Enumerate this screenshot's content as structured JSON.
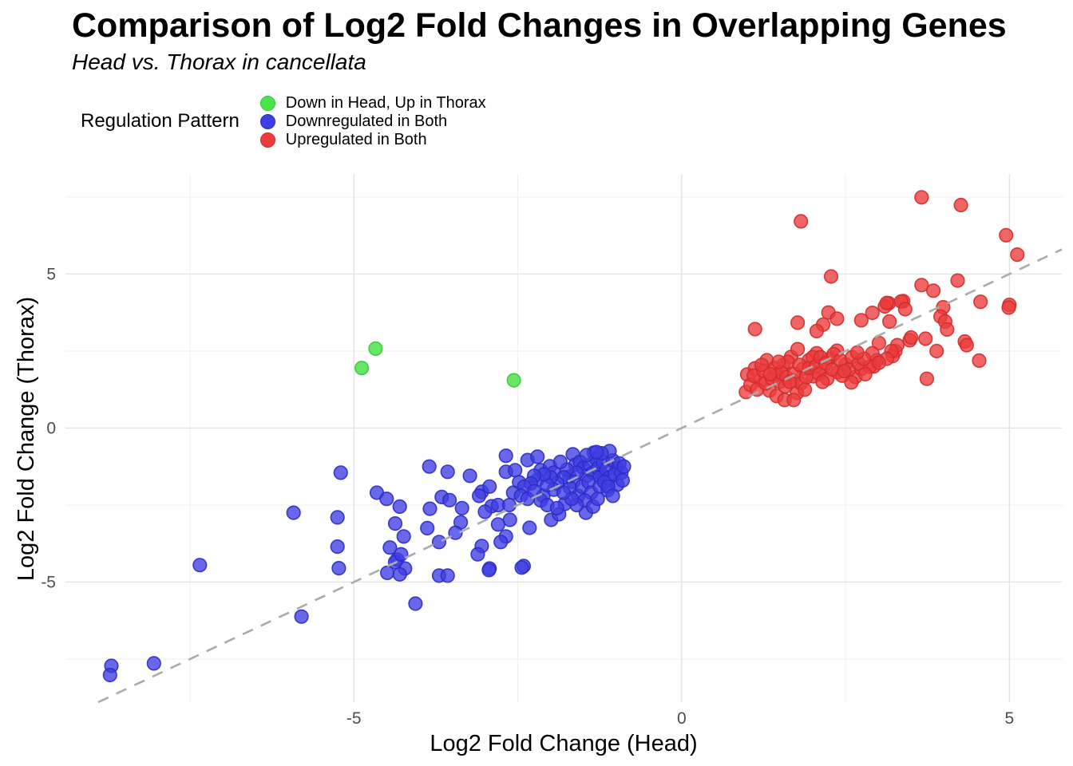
{
  "title": "Comparison of Log2 Fold Changes in Overlapping Genes",
  "subtitle": "Head vs. Thorax in cancellata",
  "legend_title": "Regulation Pattern",
  "chart_data": {
    "type": "scatter",
    "title": "Comparison of Log2 Fold Changes in Overlapping Genes",
    "subtitle": "Head vs. Thorax in cancellata",
    "xlabel": "Log2 Fold Change (Head)",
    "ylabel": "Log2 Fold Change (Thorax)",
    "xlim": [
      -9.4,
      5.8
    ],
    "ylim": [
      -8.9,
      8.25
    ],
    "x_ticks": [
      -5,
      0,
      5
    ],
    "y_ticks": [
      -5,
      0,
      5
    ],
    "minor_x_gridlines": [
      -7.5,
      -2.5,
      2.5
    ],
    "minor_y_gridlines": [
      -7.5,
      -2.5,
      2.5,
      7.5
    ],
    "grid": true,
    "legend_position": "top",
    "background": "#FFFFFF",
    "identity_line": {
      "equation": "y = x",
      "style": "dashed",
      "color": "#ABABAB"
    },
    "series": [
      {
        "name": "Down in Head, Up in Thorax",
        "color": "#4BE34B",
        "stroke": "#38C838",
        "opacity": 0.85,
        "points": [
          [
            -4.88,
            1.95
          ],
          [
            -4.67,
            2.58
          ],
          [
            -2.56,
            1.55
          ]
        ]
      },
      {
        "name": "Downregulated in Both",
        "color": "#3D3DE3",
        "stroke": "#2B2BC4",
        "opacity": 0.78,
        "points": [
          [
            -8.7,
            -7.72
          ],
          [
            -8.72,
            -8.02
          ],
          [
            -8.05,
            -7.64
          ],
          [
            -7.35,
            -4.45
          ],
          [
            -5.92,
            -2.75
          ],
          [
            -5.8,
            -6.12
          ],
          [
            -5.2,
            -1.45
          ],
          [
            -5.25,
            -2.9
          ],
          [
            -5.25,
            -3.85
          ],
          [
            -5.23,
            -4.55
          ],
          [
            -4.06,
            -5.7
          ],
          [
            -4.65,
            -2.1
          ],
          [
            -4.5,
            -2.3
          ],
          [
            -4.37,
            -3.1
          ],
          [
            -4.3,
            -2.55
          ],
          [
            -4.45,
            -3.88
          ],
          [
            -4.24,
            -3.52
          ],
          [
            -4.34,
            -4.27
          ],
          [
            -4.22,
            -4.56
          ],
          [
            -4.49,
            -4.7
          ],
          [
            -4.3,
            -4.75
          ],
          [
            -4.37,
            -4.35
          ],
          [
            -4.28,
            -4.1
          ],
          [
            -3.85,
            -1.25
          ],
          [
            -3.84,
            -2.62
          ],
          [
            -3.88,
            -3.25
          ],
          [
            -3.66,
            -2.24
          ],
          [
            -3.7,
            -3.7
          ],
          [
            -3.57,
            -1.42
          ],
          [
            -3.54,
            -2.34
          ],
          [
            -3.35,
            -2.6
          ],
          [
            -3.37,
            -3.06
          ],
          [
            -3.45,
            -3.4
          ],
          [
            -3.7,
            -4.79
          ],
          [
            -3.57,
            -4.79
          ],
          [
            -3.23,
            -1.55
          ],
          [
            -3.05,
            -2.07
          ],
          [
            -3.09,
            -2.2
          ],
          [
            -2.93,
            -1.9
          ],
          [
            -2.9,
            -2.54
          ],
          [
            -3.0,
            -2.72
          ],
          [
            -2.8,
            -2.5
          ],
          [
            -2.8,
            -3.13
          ],
          [
            -3.05,
            -3.83
          ],
          [
            -3.11,
            -4.1
          ],
          [
            -2.93,
            -4.56
          ],
          [
            -2.94,
            -4.61
          ],
          [
            -2.68,
            -0.9
          ],
          [
            -2.68,
            -1.42
          ],
          [
            -2.54,
            -1.37
          ],
          [
            -2.48,
            -1.76
          ],
          [
            -2.57,
            -2.1
          ],
          [
            -2.63,
            -2.5
          ],
          [
            -2.62,
            -2.98
          ],
          [
            -2.68,
            -3.52
          ],
          [
            -2.76,
            -3.7
          ],
          [
            -2.41,
            -4.48
          ],
          [
            -2.44,
            -4.53
          ],
          [
            -2.32,
            -3.24
          ],
          [
            -2.35,
            -1.04
          ],
          [
            -2.2,
            -0.93
          ],
          [
            -2.15,
            -1.37
          ],
          [
            -2.2,
            -1.68
          ],
          [
            -2.01,
            -1.24
          ],
          [
            -1.95,
            -1.45
          ],
          [
            -2.11,
            -2.2
          ],
          [
            -1.99,
            -2.98
          ],
          [
            -1.87,
            -2.8
          ],
          [
            -1.78,
            -2.46
          ],
          [
            -1.66,
            -0.85
          ],
          [
            -1.62,
            -1.19
          ],
          [
            -1.71,
            -1.58
          ],
          [
            -1.46,
            -2.75
          ],
          [
            -1.34,
            -0.8
          ],
          [
            -1.13,
            -2.02
          ],
          [
            -0.99,
            -1.3
          ],
          [
            -0.98,
            -1.84
          ],
          [
            -1.22,
            -1.5
          ],
          [
            -1.55,
            -1.1
          ],
          [
            -1.5,
            -1.3
          ],
          [
            -1.45,
            -1.55
          ],
          [
            -1.4,
            -1.2
          ],
          [
            -1.35,
            -1.45
          ],
          [
            -1.3,
            -1.0
          ],
          [
            -1.28,
            -1.3
          ],
          [
            -1.25,
            -1.6
          ],
          [
            -1.2,
            -1.1
          ],
          [
            -1.15,
            -1.35
          ],
          [
            -1.1,
            -1.6
          ],
          [
            -1.05,
            -1.05
          ],
          [
            -1.02,
            -1.5
          ],
          [
            -0.95,
            -1.15
          ],
          [
            -0.92,
            -1.45
          ],
          [
            -0.9,
            -1.7
          ],
          [
            -0.88,
            -1.25
          ],
          [
            -1.6,
            -1.45
          ],
          [
            -1.65,
            -1.75
          ],
          [
            -1.7,
            -1.95
          ],
          [
            -1.75,
            -1.35
          ],
          [
            -1.8,
            -1.6
          ],
          [
            -1.85,
            -1.1
          ],
          [
            -1.9,
            -1.8
          ],
          [
            -1.95,
            -2.0
          ],
          [
            -2.0,
            -1.6
          ],
          [
            -2.05,
            -1.85
          ],
          [
            -1.58,
            -2.2
          ],
          [
            -1.52,
            -1.9
          ],
          [
            -1.42,
            -1.75
          ],
          [
            -1.38,
            -2.1
          ],
          [
            -1.25,
            -1.9
          ],
          [
            -1.18,
            -1.75
          ],
          [
            -1.12,
            -1.9
          ],
          [
            -1.48,
            -2.35
          ],
          [
            -1.6,
            -2.5
          ],
          [
            -1.68,
            -2.3
          ],
          [
            -2.1,
            -1.5
          ],
          [
            -2.25,
            -1.55
          ],
          [
            -2.3,
            -1.8
          ],
          [
            -2.4,
            -1.9
          ],
          [
            -2.45,
            -2.2
          ],
          [
            -2.35,
            -2.3
          ],
          [
            -2.25,
            -2.05
          ],
          [
            -2.15,
            -2.35
          ],
          [
            -2.05,
            -2.5
          ],
          [
            -1.9,
            -2.6
          ],
          [
            -1.8,
            -2.1
          ],
          [
            -1.35,
            -2.55
          ],
          [
            -1.28,
            -2.3
          ],
          [
            -1.05,
            -2.2
          ],
          [
            -1.1,
            -0.75
          ],
          [
            -1.22,
            -0.82
          ],
          [
            -1.45,
            -0.88
          ],
          [
            -1.3,
            -0.78
          ]
        ]
      },
      {
        "name": "Upregulated in Both",
        "color": "#EC3B3B",
        "stroke": "#D02B2B",
        "opacity": 0.78,
        "points": [
          [
            3.66,
            7.49
          ],
          [
            4.26,
            7.24
          ],
          [
            1.82,
            6.71
          ],
          [
            4.95,
            6.26
          ],
          [
            5.12,
            5.63
          ],
          [
            2.28,
            4.92
          ],
          [
            3.66,
            4.64
          ],
          [
            3.84,
            4.46
          ],
          [
            4.21,
            4.79
          ],
          [
            4.56,
            4.1
          ],
          [
            5.0,
            4.0
          ],
          [
            3.38,
            4.12
          ],
          [
            3.16,
            4.05
          ],
          [
            3.99,
            3.92
          ],
          [
            3.1,
            3.95
          ],
          [
            3.13,
            4.06
          ],
          [
            3.35,
            4.11
          ],
          [
            3.41,
            3.86
          ],
          [
            4.99,
            3.91
          ],
          [
            3.95,
            3.62
          ],
          [
            4.02,
            3.46
          ],
          [
            4.05,
            3.2
          ],
          [
            3.17,
            3.46
          ],
          [
            2.74,
            3.5
          ],
          [
            2.91,
            3.74
          ],
          [
            2.24,
            3.75
          ],
          [
            2.37,
            3.55
          ],
          [
            2.16,
            3.36
          ],
          [
            2.06,
            3.15
          ],
          [
            3.48,
            2.85
          ],
          [
            3.01,
            2.76
          ],
          [
            3.26,
            2.5
          ],
          [
            3.22,
            2.34
          ],
          [
            2.98,
            2.2
          ],
          [
            2.93,
            2.0
          ],
          [
            3.5,
            2.94
          ],
          [
            3.72,
            2.9
          ],
          [
            3.89,
            2.5
          ],
          [
            4.32,
            2.81
          ],
          [
            4.35,
            2.69
          ],
          [
            3.29,
            2.69
          ],
          [
            3.2,
            2.5
          ],
          [
            3.13,
            2.25
          ],
          [
            4.54,
            2.19
          ],
          [
            3.74,
            1.6
          ],
          [
            1.12,
            3.21
          ],
          [
            1.77,
            3.42
          ],
          [
            1.0,
            1.74
          ],
          [
            0.98,
            1.17
          ],
          [
            1.12,
            1.94
          ],
          [
            1.3,
            2.2
          ],
          [
            1.2,
            1.55
          ],
          [
            1.34,
            1.22
          ],
          [
            1.46,
            1.74
          ],
          [
            1.55,
            2.05
          ],
          [
            1.67,
            2.31
          ],
          [
            1.77,
            2.56
          ],
          [
            1.7,
            1.55
          ],
          [
            1.85,
            1.92
          ],
          [
            1.94,
            2.2
          ],
          [
            2.06,
            2.43
          ],
          [
            2.01,
            1.68
          ],
          [
            2.16,
            1.94
          ],
          [
            2.26,
            2.25
          ],
          [
            2.37,
            2.51
          ],
          [
            2.38,
            1.81
          ],
          [
            2.5,
            2.07
          ],
          [
            2.65,
            1.66
          ],
          [
            2.59,
            1.48
          ],
          [
            2.74,
            1.92
          ],
          [
            2.87,
            1.99
          ],
          [
            1.45,
            1.04
          ],
          [
            1.57,
            0.91
          ],
          [
            2.91,
            2.43
          ],
          [
            3.01,
            2.12
          ],
          [
            1.76,
            1.14
          ],
          [
            1.71,
            0.91
          ],
          [
            1.05,
            1.4
          ],
          [
            1.1,
            1.7
          ],
          [
            1.15,
            1.25
          ],
          [
            1.25,
            1.85
          ],
          [
            1.28,
            1.45
          ],
          [
            1.38,
            1.6
          ],
          [
            1.42,
            1.95
          ],
          [
            1.5,
            1.5
          ],
          [
            1.52,
            1.8
          ],
          [
            1.6,
            1.65
          ],
          [
            1.62,
            2.15
          ],
          [
            1.72,
            1.75
          ],
          [
            1.8,
            2.05
          ],
          [
            1.82,
            1.45
          ],
          [
            1.9,
            1.65
          ],
          [
            1.95,
            1.95
          ],
          [
            2.0,
            2.3
          ],
          [
            2.05,
            2.0
          ],
          [
            2.1,
            1.75
          ],
          [
            2.12,
            2.3
          ],
          [
            2.2,
            2.1
          ],
          [
            2.22,
            1.6
          ],
          [
            2.3,
            1.9
          ],
          [
            2.32,
            2.4
          ],
          [
            2.42,
            2.2
          ],
          [
            2.45,
            1.7
          ],
          [
            2.55,
            1.9
          ],
          [
            2.6,
            2.3
          ],
          [
            2.7,
            2.1
          ],
          [
            2.78,
            2.25
          ],
          [
            2.8,
            1.75
          ],
          [
            1.22,
            2.05
          ],
          [
            1.35,
            1.75
          ],
          [
            1.48,
            2.15
          ],
          [
            1.58,
            1.35
          ],
          [
            1.65,
            1.5
          ],
          [
            1.88,
            1.25
          ],
          [
            2.15,
            1.5
          ],
          [
            2.48,
            1.85
          ],
          [
            2.68,
            2.45
          ]
        ]
      }
    ]
  }
}
